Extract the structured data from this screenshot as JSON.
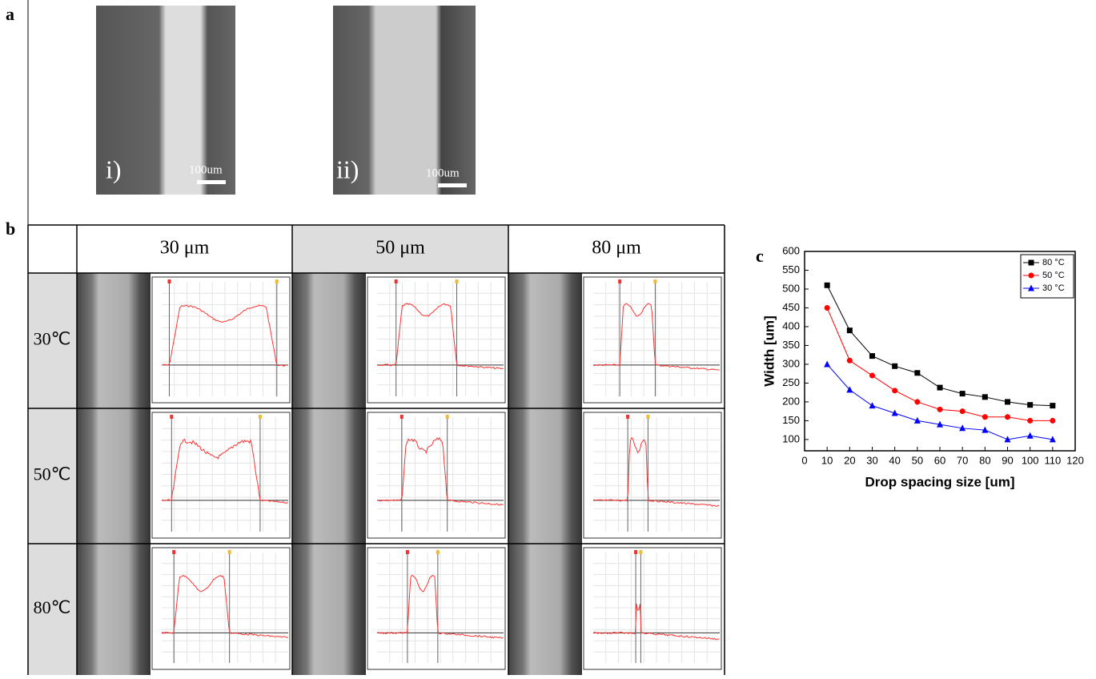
{
  "panel_a": {
    "label": "a",
    "images": [
      {
        "label": "i)",
        "scale": "100um"
      },
      {
        "label": "ii)",
        "scale": "100um"
      }
    ]
  },
  "panel_b": {
    "label": "b",
    "columns": [
      "30 μm",
      "50 μm",
      "80 μm"
    ],
    "rows": [
      "30℃",
      "50℃",
      "80℃"
    ]
  },
  "chart_data": {
    "type": "line",
    "label": "c",
    "x": [
      10,
      20,
      30,
      40,
      50,
      60,
      70,
      80,
      90,
      100,
      110
    ],
    "series": [
      {
        "name": "80 °C",
        "color": "#000000",
        "marker": "square",
        "values": [
          510,
          390,
          322,
          295,
          277,
          238,
          222,
          213,
          200,
          192,
          190
        ]
      },
      {
        "name": "50 °C",
        "color": "#ff0000",
        "marker": "circle",
        "values": [
          450,
          310,
          270,
          230,
          200,
          180,
          175,
          160,
          160,
          150,
          150
        ]
      },
      {
        "name": "30 °C",
        "color": "#0000ff",
        "marker": "triangle",
        "values": [
          300,
          232,
          190,
          170,
          150,
          140,
          130,
          125,
          100,
          110,
          100
        ]
      }
    ],
    "xlabel": "Drop spacing size [um]",
    "ylabel": "Width [um]",
    "xlim": [
      0,
      120
    ],
    "xticks": [
      0,
      10,
      20,
      30,
      40,
      50,
      60,
      70,
      80,
      90,
      100,
      110,
      120
    ],
    "ylim": [
      70,
      600
    ],
    "yticks": [
      100,
      150,
      200,
      250,
      300,
      350,
      400,
      450,
      500,
      550,
      600
    ],
    "legend": "upper right"
  }
}
